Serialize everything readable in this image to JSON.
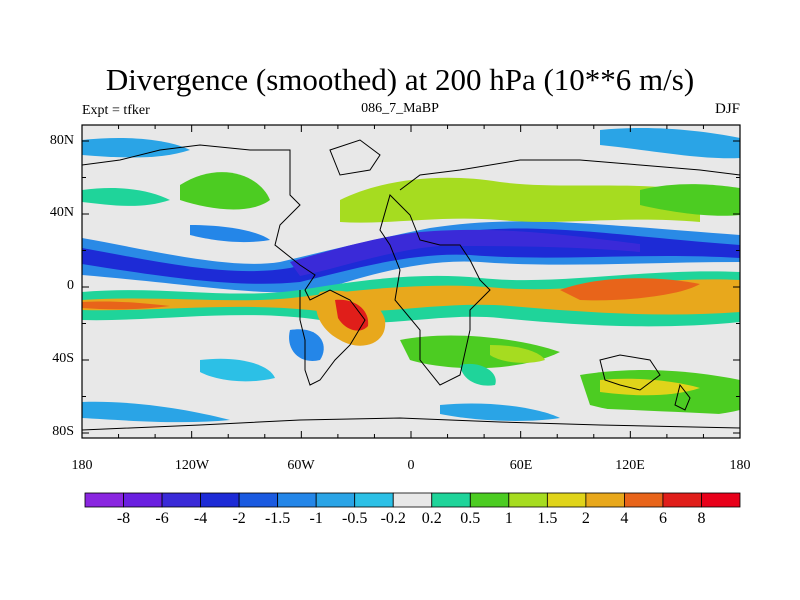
{
  "title": "Divergence (smoothed) at 200 hPa (10**6 m/s)",
  "subtitle_left": "Expt = tfker",
  "subtitle_center": "086_7_MaBP",
  "subtitle_right": "DJF",
  "lat_labels": [
    "80N",
    "40N",
    "0",
    "40S",
    "80S"
  ],
  "lon_labels": [
    "180",
    "120W",
    "60W",
    "0",
    "60E",
    "120E",
    "180"
  ],
  "colorbar": {
    "labels": [
      "-8",
      "-6",
      "-4",
      "-2",
      "-1.5",
      "-1",
      "-0.5",
      "-0.2",
      "0.2",
      "0.5",
      "1",
      "1.5",
      "2",
      "4",
      "6",
      "8"
    ],
    "colors": [
      "#8a26e0",
      "#6a1fe0",
      "#3a2ad8",
      "#1d2bd6",
      "#1a5ae0",
      "#2486e8",
      "#2aa4e6",
      "#2cc0e6",
      "#e8e8e8",
      "#1fd49a",
      "#4ccc22",
      "#a6dc20",
      "#e0d41a",
      "#e8a81c",
      "#e8641a",
      "#e01e1a",
      "#e8001a"
    ]
  },
  "background_color": "#e8e8e8"
}
